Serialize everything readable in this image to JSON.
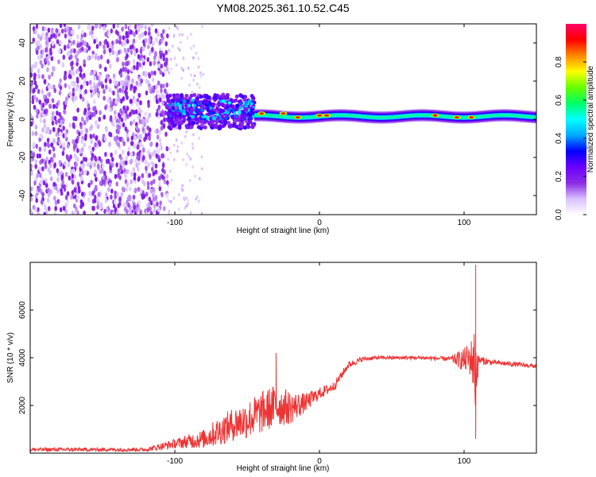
{
  "figure_title": "YM08.2025.361.10.52.C45",
  "chart_data": [
    {
      "type": "heatmap",
      "name": "spectrogram",
      "xlabel": "Height of straight line (km)",
      "ylabel": "Frequency (Hz)",
      "xlim": [
        -200,
        150
      ],
      "ylim": [
        -50,
        50
      ],
      "x_ticks": [
        -100,
        0,
        100
      ],
      "y_ticks": [
        -40,
        -20,
        0,
        20,
        40
      ],
      "colorbar": {
        "label": "Normalized spectral amplitude",
        "range": [
          0.0,
          1.0
        ],
        "ticks": [
          0.0,
          0.2,
          0.4,
          0.6,
          0.8
        ],
        "colormap": [
          "#ffffff",
          "#d8bfff",
          "#8a2be2",
          "#6a00ff",
          "#0000ff",
          "#00aaff",
          "#00ffff",
          "#00ff66",
          "#66ff00",
          "#ffff00",
          "#ff8800",
          "#ff0000",
          "#ff0066"
        ]
      },
      "regions": [
        {
          "x_range": [
            -200,
            -105
          ],
          "freq_range": [
            -50,
            50
          ],
          "amplitude_range": [
            0.05,
            0.2
          ],
          "description_level": "noise"
        },
        {
          "x_range": [
            -105,
            -45
          ],
          "freq_range": [
            -5,
            13
          ],
          "amplitude_range": [
            0.2,
            0.5
          ]
        },
        {
          "x_range": [
            -45,
            150
          ],
          "freq_range": [
            -3,
            6
          ],
          "amplitude_range": [
            0.3,
            0.9
          ]
        }
      ],
      "peaks": [
        {
          "x": -40,
          "freq": 3,
          "amplitude": 0.9
        },
        {
          "x": -25,
          "freq": 3,
          "amplitude": 0.9
        },
        {
          "x": -15,
          "freq": 1,
          "amplitude": 0.9
        },
        {
          "x": 0,
          "freq": 2,
          "amplitude": 0.9
        },
        {
          "x": 5,
          "freq": 2,
          "amplitude": 0.9
        },
        {
          "x": 80,
          "freq": 2,
          "amplitude": 0.95
        },
        {
          "x": 95,
          "freq": 1,
          "amplitude": 0.9
        },
        {
          "x": 105,
          "freq": 1,
          "amplitude": 0.9
        }
      ]
    },
    {
      "type": "line",
      "name": "snr",
      "xlabel": "Height of straight line (km)",
      "ylabel": "SNR (10 * v/v)",
      "xlim": [
        -200,
        150
      ],
      "ylim": [
        0,
        8000
      ],
      "x_ticks": [
        -100,
        0,
        100
      ],
      "y_ticks": [
        2000,
        4000,
        6000
      ],
      "color": "#ee3333",
      "series": [
        {
          "name": "SNR",
          "x": [
            -200,
            -160,
            -120,
            -100,
            -80,
            -70,
            -60,
            -50,
            -40,
            -30,
            -20,
            -10,
            0,
            10,
            20,
            30,
            40,
            50,
            70,
            90,
            100,
            105,
            108,
            110,
            120,
            140,
            150
          ],
          "y": [
            150,
            150,
            150,
            400,
            600,
            900,
            1200,
            1400,
            1700,
            2000,
            1900,
            2100,
            2500,
            2800,
            3700,
            3950,
            4000,
            4000,
            4000,
            3950,
            3900,
            4000,
            3500,
            3900,
            3800,
            3700,
            3650
          ],
          "noise": [
            80,
            80,
            80,
            200,
            400,
            600,
            700,
            800,
            900,
            900,
            700,
            400,
            250,
            200,
            150,
            100,
            80,
            80,
            80,
            100,
            500,
            800,
            2000,
            200,
            100,
            100,
            100
          ]
        }
      ],
      "annotations": [
        {
          "x": -30,
          "y": 4200,
          "kind": "spike"
        },
        {
          "x": 108,
          "y": 7900,
          "kind": "spike"
        },
        {
          "x": 108,
          "y": 600,
          "kind": "dip"
        }
      ]
    }
  ]
}
